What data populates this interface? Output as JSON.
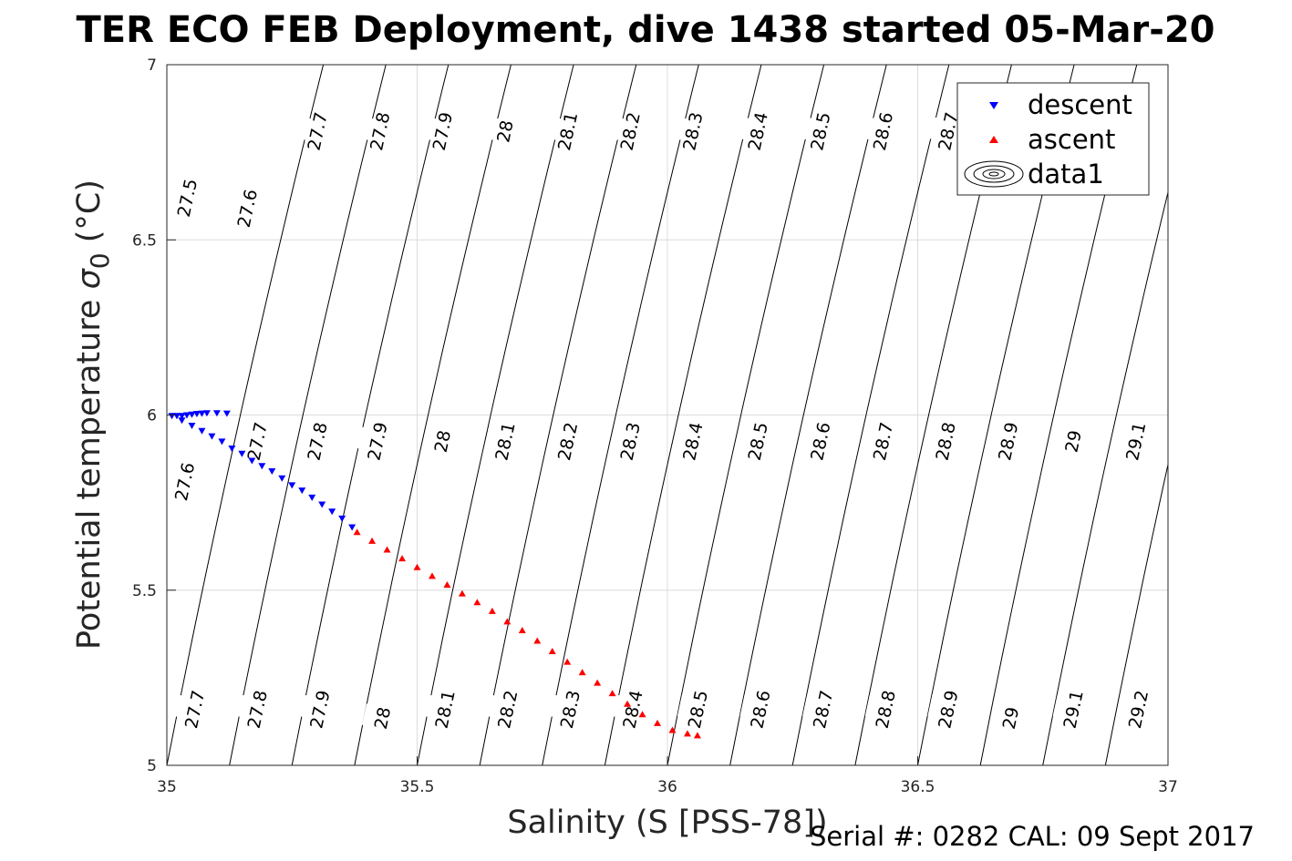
{
  "chart_data": {
    "type": "scatter",
    "title": "TER ECO FEB Deployment, dive 1438 started 05-Mar-20",
    "xlabel": "Salinity (S [PSS-78])",
    "ylabel_main": "Potential temperature ",
    "ylabel_symbol": "σ",
    "ylabel_sub": "0",
    "ylabel_unit": " (°C)",
    "footer": "Serial #: 0282  CAL: 09 Sept 2017",
    "xlim": [
      35,
      37
    ],
    "ylim": [
      5,
      7
    ],
    "xticks": [
      35,
      35.5,
      36,
      36.5,
      37
    ],
    "xtick_labels": [
      "35",
      "35.5",
      "36",
      "36.5",
      "37"
    ],
    "yticks": [
      5,
      5.5,
      6,
      6.5,
      7
    ],
    "ytick_labels": [
      "5",
      "5.5",
      "6",
      "6.5",
      "7"
    ],
    "grid": true,
    "legend_position": "top-right",
    "legend": [
      "descent",
      "ascent",
      "data1"
    ],
    "series": [
      {
        "name": "descent",
        "marker": "triangle-down",
        "color": "#0000ff",
        "points": [
          [
            35.12,
            6.005
          ],
          [
            35.1,
            6.006
          ],
          [
            35.08,
            6.006
          ],
          [
            35.07,
            6.005
          ],
          [
            35.06,
            6.004
          ],
          [
            35.05,
            6.002
          ],
          [
            35.04,
            6.0
          ],
          [
            35.03,
            5.998
          ],
          [
            35.02,
            5.998
          ],
          [
            35.01,
            5.998
          ],
          [
            35.03,
            5.985
          ],
          [
            35.05,
            5.97
          ],
          [
            35.07,
            5.955
          ],
          [
            35.09,
            5.94
          ],
          [
            35.11,
            5.925
          ],
          [
            35.13,
            5.905
          ],
          [
            35.15,
            5.89
          ],
          [
            35.17,
            5.87
          ],
          [
            35.19,
            5.855
          ],
          [
            35.21,
            5.84
          ],
          [
            35.23,
            5.82
          ],
          [
            35.25,
            5.8
          ],
          [
            35.27,
            5.785
          ],
          [
            35.29,
            5.765
          ],
          [
            35.31,
            5.745
          ],
          [
            35.33,
            5.725
          ],
          [
            35.35,
            5.705
          ],
          [
            35.37,
            5.68
          ]
        ]
      },
      {
        "name": "ascent",
        "marker": "triangle-up",
        "color": "#ff0000",
        "points": [
          [
            35.38,
            5.665
          ],
          [
            35.41,
            5.64
          ],
          [
            35.44,
            5.615
          ],
          [
            35.47,
            5.59
          ],
          [
            35.5,
            5.565
          ],
          [
            35.53,
            5.54
          ],
          [
            35.56,
            5.515
          ],
          [
            35.59,
            5.49
          ],
          [
            35.62,
            5.465
          ],
          [
            35.65,
            5.44
          ],
          [
            35.68,
            5.41
          ],
          [
            35.71,
            5.385
          ],
          [
            35.74,
            5.355
          ],
          [
            35.77,
            5.325
          ],
          [
            35.8,
            5.295
          ],
          [
            35.83,
            5.265
          ],
          [
            35.86,
            5.235
          ],
          [
            35.89,
            5.205
          ],
          [
            35.92,
            5.175
          ],
          [
            35.95,
            5.145
          ],
          [
            35.98,
            5.12
          ],
          [
            36.01,
            5.1
          ],
          [
            36.04,
            5.09
          ],
          [
            36.06,
            5.085
          ]
        ]
      }
    ],
    "contours": {
      "name": "data1",
      "levels": [
        "27.5",
        "27.6",
        "27.7",
        "27.8",
        "27.9",
        "28",
        "28.1",
        "28.2",
        "28.3",
        "28.4",
        "28.5",
        "28.6",
        "28.7",
        "28.8",
        "28.9",
        "29",
        "29.1",
        "29.2"
      ],
      "labels_top": [
        {
          "level": "27.5",
          "s": 35.04,
          "t": 6.62
        },
        {
          "level": "27.6",
          "s": 35.16,
          "t": 6.59
        },
        {
          "level": "27.7",
          "s": 35.3,
          "t": 6.81
        },
        {
          "level": "27.8",
          "s": 35.425,
          "t": 6.81
        },
        {
          "level": "27.9",
          "s": 35.55,
          "t": 6.81
        },
        {
          "level": "28",
          "s": 35.675,
          "t": 6.81
        },
        {
          "level": "28.1",
          "s": 35.8,
          "t": 6.81
        },
        {
          "level": "28.2",
          "s": 35.925,
          "t": 6.81
        },
        {
          "level": "28.3",
          "s": 36.05,
          "t": 6.81
        },
        {
          "level": "28.4",
          "s": 36.18,
          "t": 6.81
        },
        {
          "level": "28.5",
          "s": 36.305,
          "t": 6.81
        },
        {
          "level": "28.6",
          "s": 36.43,
          "t": 6.81
        },
        {
          "level": "28.7",
          "s": 36.56,
          "t": 6.81
        }
      ],
      "labels_mid": [
        {
          "level": "27.6",
          "s": 35.035,
          "t": 5.81
        },
        {
          "level": "27.7",
          "s": 35.18,
          "t": 5.925
        },
        {
          "level": "27.8",
          "s": 35.3,
          "t": 5.925
        },
        {
          "level": "27.9",
          "s": 35.42,
          "t": 5.925
        },
        {
          "level": "28",
          "s": 35.55,
          "t": 5.925
        },
        {
          "level": "28.1",
          "s": 35.675,
          "t": 5.925
        },
        {
          "level": "28.2",
          "s": 35.8,
          "t": 5.925
        },
        {
          "level": "28.3",
          "s": 35.925,
          "t": 5.925
        },
        {
          "level": "28.4",
          "s": 36.05,
          "t": 5.925
        },
        {
          "level": "28.5",
          "s": 36.18,
          "t": 5.925
        },
        {
          "level": "28.6",
          "s": 36.305,
          "t": 5.925
        },
        {
          "level": "28.7",
          "s": 36.43,
          "t": 5.925
        },
        {
          "level": "28.8",
          "s": 36.555,
          "t": 5.925
        },
        {
          "level": "28.9",
          "s": 36.68,
          "t": 5.925
        },
        {
          "level": "29",
          "s": 36.81,
          "t": 5.925
        },
        {
          "level": "29.1",
          "s": 36.935,
          "t": 5.925
        }
      ],
      "labels_bottom": [
        {
          "level": "27.7",
          "s": 35.055,
          "t": 5.16
        },
        {
          "level": "27.8",
          "s": 35.18,
          "t": 5.16
        },
        {
          "level": "27.9",
          "s": 35.305,
          "t": 5.16
        },
        {
          "level": "28",
          "s": 35.43,
          "t": 5.135
        },
        {
          "level": "28.1",
          "s": 35.555,
          "t": 5.16
        },
        {
          "level": "28.2",
          "s": 35.68,
          "t": 5.16
        },
        {
          "level": "28.3",
          "s": 35.805,
          "t": 5.16
        },
        {
          "level": "28.4",
          "s": 35.93,
          "t": 5.16
        },
        {
          "level": "28.5",
          "s": 36.06,
          "t": 5.16
        },
        {
          "level": "28.6",
          "s": 36.185,
          "t": 5.16
        },
        {
          "level": "28.7",
          "s": 36.31,
          "t": 5.16
        },
        {
          "level": "28.8",
          "s": 36.435,
          "t": 5.16
        },
        {
          "level": "28.9",
          "s": 36.56,
          "t": 5.16
        },
        {
          "level": "29",
          "s": 36.685,
          "t": 5.135
        },
        {
          "level": "29.1",
          "s": 36.81,
          "t": 5.16
        },
        {
          "level": "29.2",
          "s": 36.94,
          "t": 5.16
        }
      ]
    }
  }
}
